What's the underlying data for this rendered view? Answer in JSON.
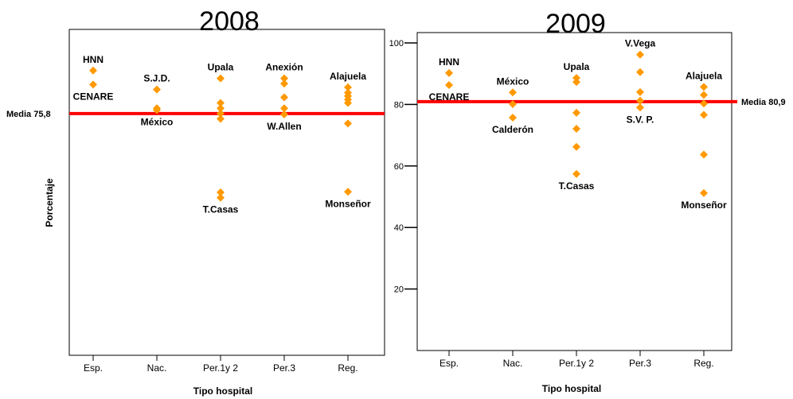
{
  "y_axis_title": "Porcentaje",
  "chart_data": [
    {
      "type": "scatter",
      "title": "2008",
      "xlabel": "Tipo hospital",
      "ylabel": "Porcentaje",
      "categories": [
        "Esp.",
        "Nac.",
        "Per.1y 2",
        "Per.3",
        "Reg."
      ],
      "ylim": [
        0,
        105
      ],
      "y_ticks_shown": false,
      "mean_line": {
        "value": 75.8,
        "label": "Media 75,8",
        "color": "#ff0000"
      },
      "point_color": "#ff9900",
      "points": [
        {
          "category": "Esp.",
          "value": 89.6
        },
        {
          "category": "Esp.",
          "value": 85.1
        },
        {
          "category": "Nac.",
          "value": 83.5
        },
        {
          "category": "Nac.",
          "value": 77.5
        },
        {
          "category": "Nac.",
          "value": 76.9
        },
        {
          "category": "Per.1y 2",
          "value": 87.1
        },
        {
          "category": "Per.1y 2",
          "value": 79.2
        },
        {
          "category": "Per.1y 2",
          "value": 77.5
        },
        {
          "category": "Per.1y 2",
          "value": 75.8
        },
        {
          "category": "Per.1y 2",
          "value": 74.1
        },
        {
          "category": "Per.1y 2",
          "value": 50.5
        },
        {
          "category": "Per.1y 2",
          "value": 48.8
        },
        {
          "category": "Per.3",
          "value": 87.1
        },
        {
          "category": "Per.3",
          "value": 85.4
        },
        {
          "category": "Per.3",
          "value": 81.0
        },
        {
          "category": "Per.3",
          "value": 77.5
        },
        {
          "category": "Per.3",
          "value": 75.5
        },
        {
          "category": "Reg.",
          "value": 84.2
        },
        {
          "category": "Reg.",
          "value": 82.5
        },
        {
          "category": "Reg.",
          "value": 81.4
        },
        {
          "category": "Reg.",
          "value": 80.3
        },
        {
          "category": "Reg.",
          "value": 79.2
        },
        {
          "category": "Reg.",
          "value": 72.6
        },
        {
          "category": "Reg.",
          "value": 50.7
        }
      ],
      "annotations": [
        {
          "text": "HNN",
          "category": "Esp.",
          "value": 89.6,
          "pos": "above"
        },
        {
          "text": "CENARE",
          "category": "Esp.",
          "value": 85.1,
          "pos": "below"
        },
        {
          "text": "S.J.D.",
          "category": "Nac.",
          "value": 83.5,
          "pos": "above"
        },
        {
          "text": "México",
          "category": "Nac.",
          "value": 76.9,
          "pos": "below"
        },
        {
          "text": "Upala",
          "category": "Per.1y 2",
          "value": 87.1,
          "pos": "above"
        },
        {
          "text": "T.Casas",
          "category": "Per.1y 2",
          "value": 48.8,
          "pos": "below"
        },
        {
          "text": "Anexión",
          "category": "Per.3",
          "value": 87.1,
          "pos": "above"
        },
        {
          "text": "W.Allen",
          "category": "Per.3",
          "value": 75.5,
          "pos": "below"
        },
        {
          "text": "Alajuela",
          "category": "Reg.",
          "value": 84.2,
          "pos": "above"
        },
        {
          "text": "Monseñor",
          "category": "Reg.",
          "value": 50.7,
          "pos": "below"
        }
      ]
    },
    {
      "type": "scatter",
      "title": "2009",
      "xlabel": "Tipo hospital",
      "ylabel": "",
      "categories": [
        "Esp.",
        "Nac.",
        "Per.1y 2",
        "Per.3",
        "Reg."
      ],
      "ylim": [
        0,
        103
      ],
      "yticks": [
        20,
        40,
        60,
        80,
        100
      ],
      "mean_line": {
        "value": 80.9,
        "label": "Media 80,9",
        "color": "#ff0000"
      },
      "point_color": "#ff9900",
      "points": [
        {
          "category": "Esp.",
          "value": 90.2
        },
        {
          "category": "Esp.",
          "value": 86.3
        },
        {
          "category": "Nac.",
          "value": 83.9
        },
        {
          "category": "Nac.",
          "value": 80.1
        },
        {
          "category": "Nac.",
          "value": 75.7
        },
        {
          "category": "Per.1y 2",
          "value": 88.6
        },
        {
          "category": "Per.1y 2",
          "value": 87.3
        },
        {
          "category": "Per.1y 2",
          "value": 77.3
        },
        {
          "category": "Per.1y 2",
          "value": 72.1
        },
        {
          "category": "Per.1y 2",
          "value": 66.2
        },
        {
          "category": "Per.1y 2",
          "value": 57.4
        },
        {
          "category": "Per.3",
          "value": 96.2
        },
        {
          "category": "Per.3",
          "value": 90.5
        },
        {
          "category": "Per.3",
          "value": 84.0
        },
        {
          "category": "Per.3",
          "value": 81.2
        },
        {
          "category": "Per.3",
          "value": 79.0
        },
        {
          "category": "Reg.",
          "value": 85.7
        },
        {
          "category": "Reg.",
          "value": 83.1
        },
        {
          "category": "Reg.",
          "value": 80.3
        },
        {
          "category": "Reg.",
          "value": 76.6
        },
        {
          "category": "Reg.",
          "value": 63.7
        },
        {
          "category": "Reg.",
          "value": 51.2
        }
      ],
      "annotations": [
        {
          "text": "HNN",
          "category": "Esp.",
          "value": 90.2,
          "pos": "above"
        },
        {
          "text": "CENARE",
          "category": "Esp.",
          "value": 86.3,
          "pos": "below"
        },
        {
          "text": "México",
          "category": "Nac.",
          "value": 83.9,
          "pos": "above"
        },
        {
          "text": "Calderón",
          "category": "Nac.",
          "value": 75.7,
          "pos": "below"
        },
        {
          "text": "Upala",
          "category": "Per.1y 2",
          "value": 88.6,
          "pos": "above"
        },
        {
          "text": "T.Casas",
          "category": "Per.1y 2",
          "value": 57.4,
          "pos": "below"
        },
        {
          "text": "V.Vega",
          "category": "Per.3",
          "value": 96.2,
          "pos": "above"
        },
        {
          "text": "S.V. P.",
          "category": "Per.3",
          "value": 79.0,
          "pos": "below"
        },
        {
          "text": "Alajuela",
          "category": "Reg.",
          "value": 85.7,
          "pos": "above"
        },
        {
          "text": "Monseñor",
          "category": "Reg.",
          "value": 51.2,
          "pos": "below"
        }
      ]
    }
  ]
}
